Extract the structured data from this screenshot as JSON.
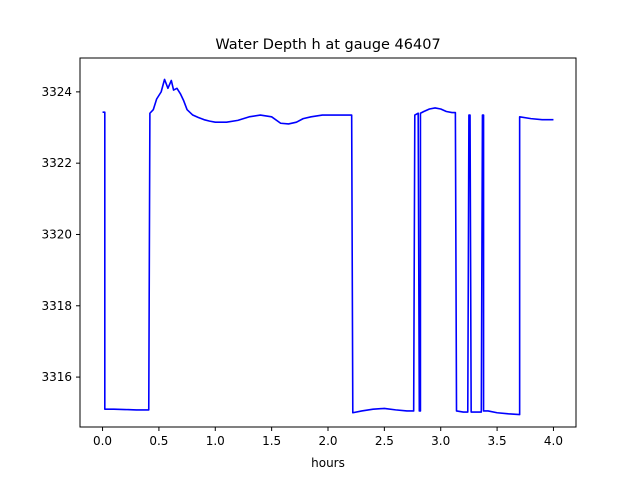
{
  "chart_data": {
    "type": "line",
    "title": "Water Depth h at gauge 46407",
    "xlabel": "hours",
    "ylabel": "",
    "xlim": [
      -0.2,
      4.2
    ],
    "ylim": [
      3314.6,
      3324.95
    ],
    "xticks": [
      0.0,
      0.5,
      1.0,
      1.5,
      2.0,
      2.5,
      3.0,
      3.5,
      4.0
    ],
    "xtick_labels": [
      "0.0",
      "0.5",
      "1.0",
      "1.5",
      "2.0",
      "2.5",
      "3.0",
      "3.5",
      "4.0"
    ],
    "yticks": [
      3316,
      3318,
      3320,
      3322,
      3324
    ],
    "ytick_labels": [
      "3316",
      "3318",
      "3320",
      "3322",
      "3324"
    ],
    "grid": false,
    "legend": "none",
    "series": [
      {
        "color": "#0000ff",
        "x": [
          0.0,
          0.02,
          0.02,
          0.1,
          0.2,
          0.3,
          0.41,
          0.42,
          0.42,
          0.45,
          0.48,
          0.52,
          0.55,
          0.58,
          0.61,
          0.63,
          0.66,
          0.69,
          0.72,
          0.75,
          0.8,
          0.85,
          0.9,
          0.95,
          1.0,
          1.1,
          1.2,
          1.3,
          1.4,
          1.5,
          1.58,
          1.65,
          1.72,
          1.78,
          1.85,
          1.95,
          2.05,
          2.15,
          2.21,
          2.22,
          2.3,
          2.4,
          2.5,
          2.6,
          2.7,
          2.76,
          2.77,
          2.8,
          2.81,
          2.82,
          2.82,
          2.85,
          2.9,
          2.95,
          3.0,
          3.05,
          3.1,
          3.13,
          3.14,
          3.2,
          3.24,
          3.25,
          3.26,
          3.27,
          3.27,
          3.3,
          3.36,
          3.37,
          3.38,
          3.38,
          3.42,
          3.5,
          3.6,
          3.7,
          3.7,
          3.8,
          3.9,
          4.0
        ],
        "y": [
          3323.43,
          3323.43,
          3315.1,
          3315.1,
          3315.09,
          3315.08,
          3315.08,
          3323.4,
          3323.4,
          3323.5,
          3323.8,
          3324.0,
          3324.35,
          3324.1,
          3324.32,
          3324.05,
          3324.1,
          3323.95,
          3323.75,
          3323.5,
          3323.35,
          3323.28,
          3323.22,
          3323.18,
          3323.15,
          3323.15,
          3323.2,
          3323.3,
          3323.35,
          3323.3,
          3323.12,
          3323.1,
          3323.15,
          3323.25,
          3323.3,
          3323.35,
          3323.35,
          3323.35,
          3323.35,
          3315.0,
          3315.05,
          3315.1,
          3315.12,
          3315.08,
          3315.05,
          3315.05,
          3323.35,
          3323.4,
          3315.05,
          3315.05,
          3323.4,
          3323.45,
          3323.52,
          3323.55,
          3323.52,
          3323.45,
          3323.42,
          3323.42,
          3315.05,
          3315.02,
          3315.02,
          3323.35,
          3323.35,
          3315.02,
          3315.02,
          3315.02,
          3315.02,
          3323.35,
          3323.35,
          3315.05,
          3315.05,
          3315.0,
          3314.97,
          3314.95,
          3323.3,
          3323.25,
          3323.22,
          3323.22
        ]
      }
    ]
  }
}
